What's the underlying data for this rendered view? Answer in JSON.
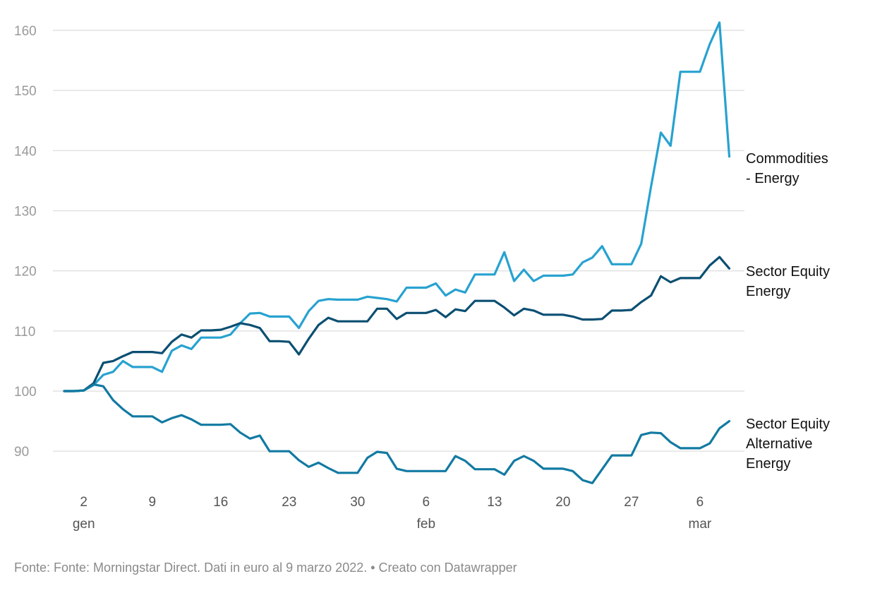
{
  "chart_data": {
    "type": "line",
    "title": "",
    "xlabel": "",
    "ylabel": "",
    "x_start": "2021-12-31",
    "x_step_days": 1,
    "ylim": [
      84,
      162
    ],
    "yticks": [
      90,
      100,
      110,
      120,
      130,
      140,
      150,
      160
    ],
    "xticks": [
      {
        "day": 2,
        "label": "2",
        "sub": "gen"
      },
      {
        "day": 9,
        "label": "9",
        "sub": ""
      },
      {
        "day": 16,
        "label": "16",
        "sub": ""
      },
      {
        "day": 23,
        "label": "23",
        "sub": ""
      },
      {
        "day": 30,
        "label": "30",
        "sub": ""
      },
      {
        "day": 37,
        "label": "6",
        "sub": "feb"
      },
      {
        "day": 44,
        "label": "13",
        "sub": ""
      },
      {
        "day": 51,
        "label": "20",
        "sub": ""
      },
      {
        "day": 58,
        "label": "27",
        "sub": ""
      },
      {
        "day": 65,
        "label": "6",
        "sub": "mar"
      }
    ],
    "grid": true,
    "legend": "direct-labels-right",
    "series": [
      {
        "name": "Commodities - Energy",
        "label_lines": [
          "Commodities",
          "- Energy"
        ],
        "color": "#27a2d0",
        "values": [
          100,
          100,
          100.1,
          101.0,
          102.7,
          103.2,
          105.0,
          104.0,
          104.0,
          104.0,
          103.2,
          106.7,
          107.6,
          107.0,
          108.9,
          108.9,
          108.9,
          109.4,
          111.3,
          112.9,
          113.0,
          112.4,
          112.4,
          112.4,
          110.5,
          113.3,
          115.0,
          115.3,
          115.2,
          115.2,
          115.2,
          115.7,
          115.5,
          115.3,
          114.9,
          117.2,
          117.2,
          117.2,
          117.9,
          115.9,
          116.9,
          116.4,
          119.4,
          119.4,
          119.4,
          123.1,
          118.3,
          120.2,
          118.3,
          119.2,
          119.2,
          119.2,
          119.4,
          121.4,
          122.2,
          124.1,
          121.1,
          121.1,
          121.1,
          124.5,
          134.0,
          143.0,
          140.8,
          153.1,
          153.1,
          153.1,
          157.7,
          161.3,
          139.0
        ]
      },
      {
        "name": "Sector Equity Energy",
        "label_lines": [
          "Sector Equity",
          "Energy"
        ],
        "color": "#0b4f72",
        "values": [
          100,
          100,
          100.1,
          101.3,
          104.7,
          105.0,
          105.8,
          106.5,
          106.5,
          106.5,
          106.3,
          108.2,
          109.4,
          108.9,
          110.1,
          110.1,
          110.2,
          110.7,
          111.3,
          111.0,
          110.5,
          108.3,
          108.3,
          108.2,
          106.1,
          108.7,
          111.0,
          112.2,
          111.6,
          111.6,
          111.6,
          111.6,
          113.7,
          113.7,
          112.0,
          113.0,
          113.0,
          113.0,
          113.5,
          112.3,
          113.6,
          113.3,
          115.0,
          115.0,
          115.0,
          113.9,
          112.6,
          113.7,
          113.4,
          112.7,
          112.7,
          112.7,
          112.4,
          111.9,
          111.9,
          112.0,
          113.4,
          113.4,
          113.5,
          114.8,
          115.9,
          119.1,
          118.1,
          118.8,
          118.8,
          118.8,
          120.9,
          122.3,
          120.4
        ]
      },
      {
        "name": "Sector Equity Alternative Energy",
        "label_lines": [
          "Sector Equity",
          "Alternative",
          "Energy"
        ],
        "color": "#127aa2",
        "values": [
          100,
          100,
          100.1,
          101.1,
          100.8,
          98.5,
          97.0,
          95.8,
          95.8,
          95.8,
          94.8,
          95.5,
          96.0,
          95.3,
          94.4,
          94.4,
          94.4,
          94.5,
          93.1,
          92.1,
          92.6,
          90.0,
          90.0,
          90.0,
          88.5,
          87.4,
          88.1,
          87.2,
          86.4,
          86.4,
          86.4,
          88.9,
          89.9,
          89.7,
          87.1,
          86.7,
          86.7,
          86.7,
          86.7,
          86.7,
          89.2,
          88.4,
          87.0,
          87.0,
          87.0,
          86.1,
          88.4,
          89.2,
          88.4,
          87.1,
          87.1,
          87.1,
          86.7,
          85.2,
          84.7,
          87.0,
          89.3,
          89.3,
          89.3,
          92.7,
          93.1,
          93.0,
          91.5,
          90.5,
          90.5,
          90.5,
          91.3,
          93.8,
          95.0
        ]
      }
    ]
  },
  "footer": "Fonte: Fonte: Morningstar Direct. Dati in euro al 9 marzo 2022. • Creato con Datawrapper"
}
